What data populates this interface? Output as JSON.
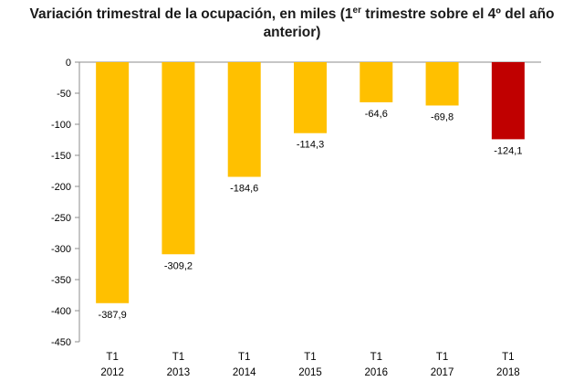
{
  "chart_data": {
    "type": "bar",
    "title": {
      "pre": "Variación trimestral de la ocupación, en miles  (1",
      "sup": "er",
      "post": " trimestre sobre el 4º del año",
      "line2": "anterior)"
    },
    "categories": [
      {
        "line1": "T1",
        "line2": "2012"
      },
      {
        "line1": "T1",
        "line2": "2013"
      },
      {
        "line1": "T1",
        "line2": "2014"
      },
      {
        "line1": "T1",
        "line2": "2015"
      },
      {
        "line1": "T1",
        "line2": "2016"
      },
      {
        "line1": "T1",
        "line2": "2017"
      },
      {
        "line1": "T1",
        "line2": "2018"
      }
    ],
    "values": [
      -387.9,
      -309.2,
      -184.6,
      -114.3,
      -64.6,
      -69.8,
      -124.1
    ],
    "data_labels": [
      "-387,9",
      "-309,2",
      "-184,6",
      "-114,3",
      "-64,6",
      "-69,8",
      "-124,1"
    ],
    "yticks": [
      0,
      -50,
      -100,
      -150,
      -200,
      -250,
      -300,
      -350,
      -400,
      -450
    ],
    "ylim": [
      -450,
      0
    ],
    "grid": false,
    "colors": {
      "default": "#FFC000",
      "highlight": "#C00000",
      "highlight_index": 6
    }
  }
}
